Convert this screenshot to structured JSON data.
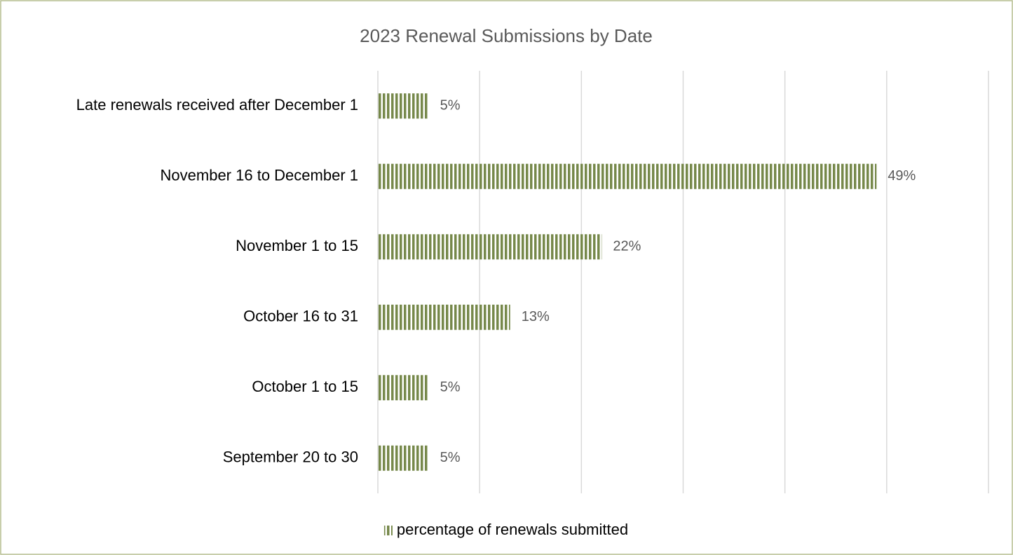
{
  "chart_data": {
    "type": "hbar",
    "title": "2023 Renewal Submissions by Date",
    "categories": [
      "Late renewals received after December 1",
      "November 16 to December 1",
      "November 1 to 15",
      "October 16 to 31",
      "October 1 to 15",
      "September 20 to 30"
    ],
    "series": [
      {
        "name": "percentage of renewals submitted",
        "color": "#76884a",
        "values": [
          5,
          49,
          22,
          13,
          5,
          5
        ],
        "value_labels": [
          "5%",
          "49%",
          "22%",
          "13%",
          "5%",
          "5%"
        ]
      }
    ],
    "xlim": [
      0,
      60
    ],
    "xticks": [
      0,
      10,
      20,
      30,
      40,
      50,
      60
    ],
    "grid": true,
    "legend": "bottom"
  }
}
